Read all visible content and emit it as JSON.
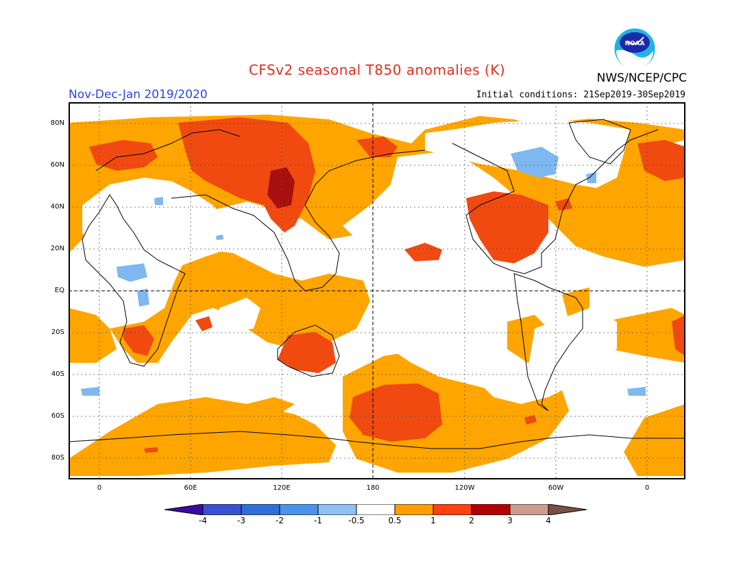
{
  "header": {
    "title": "CFSv2 seasonal T850 anomalies (K)",
    "agency": "NWS/NCEP/CPC",
    "period": "Nov-Dec-Jan 2019/2020",
    "initial_conditions": "Initial conditions: 21Sep2019-30Sep2019",
    "logo_text": "NOAA"
  },
  "axes": {
    "lat_labels": [
      "80N",
      "60N",
      "40N",
      "20N",
      "EQ",
      "20S",
      "40S",
      "60S",
      "80S"
    ],
    "lon_labels": [
      "0",
      "60E",
      "120E",
      "180",
      "120W",
      "60W",
      "0"
    ]
  },
  "colorbar": {
    "labels": [
      "-4",
      "-3",
      "-2",
      "-1",
      "-0.5",
      "0.5",
      "1",
      "2",
      "3",
      "4"
    ],
    "colors": [
      "#3c0aa0",
      "#3c4fd0",
      "#2f6fd8",
      "#4b93ea",
      "#8fc1f2",
      "#ffffff",
      "#ff9e00",
      "#ff4010",
      "#b20000",
      "#cc9c8c",
      "#7a4f45"
    ]
  },
  "legend_colors": {
    "warm1": "#ffa500",
    "warm2": "#f04a10",
    "warm3": "#a80f0f",
    "cool1": "#7fb8f0"
  }
}
